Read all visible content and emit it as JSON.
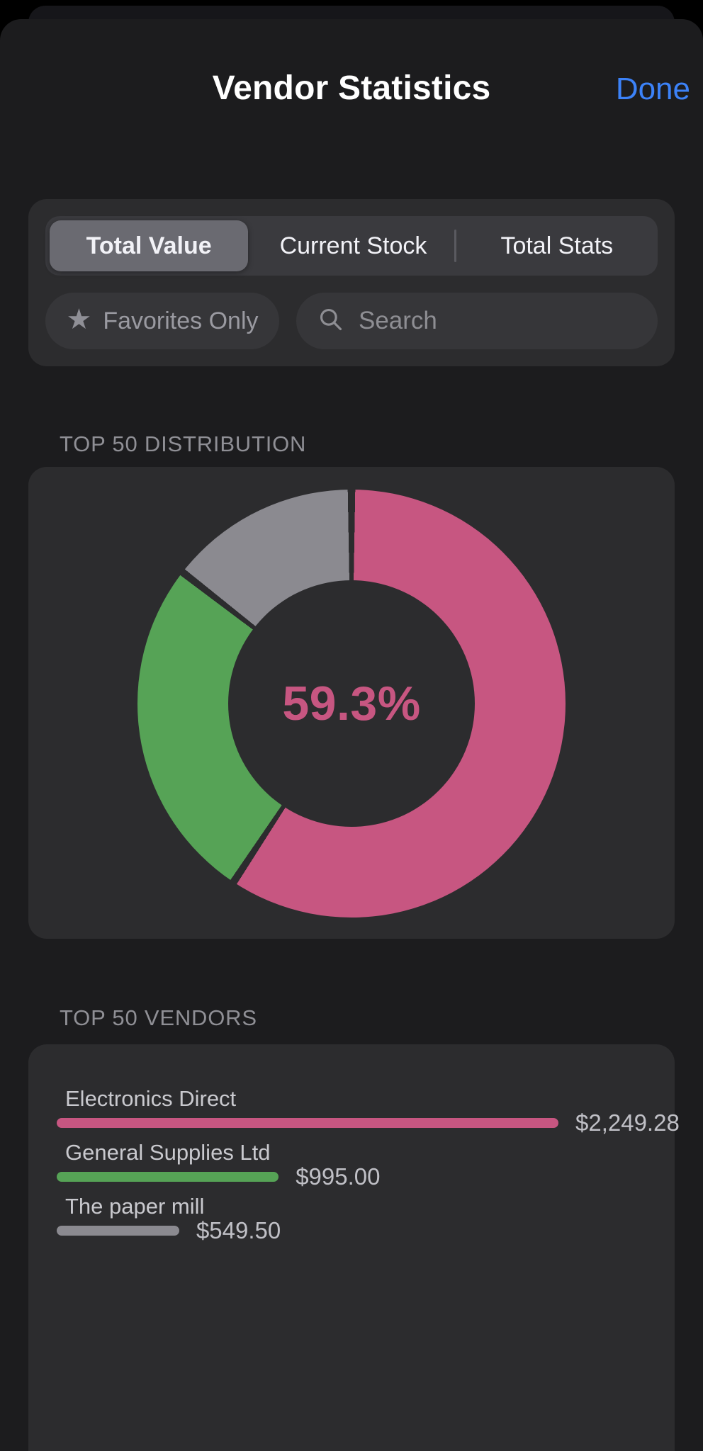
{
  "header": {
    "title": "Vendor Statistics",
    "done_label": "Done"
  },
  "filters": {
    "segments": [
      {
        "label": "Total Value",
        "selected": true
      },
      {
        "label": "Current Stock",
        "selected": false
      },
      {
        "label": "Total Stats",
        "selected": false
      }
    ],
    "favorites_label": "Favorites Only",
    "search_placeholder": "Search",
    "search_value": ""
  },
  "sections": {
    "distribution_title": "TOP 50 DISTRIBUTION",
    "vendors_title": "TOP 50 VENDORS"
  },
  "colors": {
    "pink": "#c75681",
    "green": "#56a356",
    "gray": "#8b8a90",
    "accent_blue": "#3c82f8",
    "card_background": "#2c2c2e",
    "slice_gap": "#2c2c2e"
  },
  "chart_data": [
    {
      "type": "pie",
      "subtype": "donut",
      "title": "TOP 50 DISTRIBUTION",
      "labels": [
        "Electronics Direct",
        "General Supplies Ltd",
        "The paper mill"
      ],
      "values": [
        2249.28,
        995.0,
        549.5
      ],
      "percentages": [
        59.3,
        26.2,
        14.5
      ],
      "center_label": "59.3%",
      "colors": [
        "#c75681",
        "#56a356",
        "#8b8a90"
      ],
      "start_angle_deg": 0,
      "direction": "clockwise",
      "legend": "none"
    },
    {
      "type": "bar",
      "orientation": "horizontal",
      "title": "TOP 50 VENDORS",
      "categories": [
        "Electronics Direct",
        "General Supplies Ltd",
        "The paper mill"
      ],
      "values": [
        2249.28,
        995.0,
        549.5
      ],
      "value_labels": [
        "$2,249.28",
        "$995.00",
        "$549.50"
      ],
      "colors": [
        "#c75681",
        "#56a356",
        "#8b8a90"
      ],
      "xlim": [
        0,
        2249.28
      ],
      "grid": false,
      "legend": "none"
    }
  ]
}
